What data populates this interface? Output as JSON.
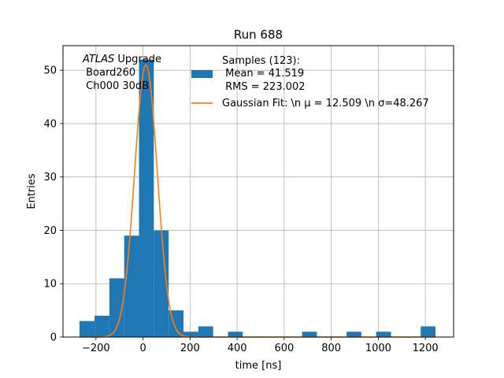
{
  "chart_data": {
    "type": "bar",
    "title": "Run 688",
    "xlabel": "time [ns]",
    "ylabel": "Entries",
    "xlim": [
      -340,
      1320
    ],
    "ylim": [
      0,
      54.6
    ],
    "xticks": [
      -200,
      0,
      200,
      400,
      600,
      800,
      1000,
      1200
    ],
    "xtick_labels": [
      "−200",
      "0",
      "200",
      "400",
      "600",
      "800",
      "1000",
      "1200"
    ],
    "yticks": [
      0,
      10,
      20,
      30,
      40,
      50
    ],
    "ytick_labels": [
      "0",
      "10",
      "20",
      "30",
      "40",
      "50"
    ],
    "grid": true,
    "annotation": {
      "lines": [
        {
          "italic": "ATLAS",
          "normal": " Upgrade"
        },
        {
          "italic": "",
          "normal": " Board260"
        },
        {
          "italic": "",
          "normal": " Ch000 30dB"
        }
      ]
    },
    "legend": {
      "placement": "top-right",
      "histogram_label_lines": [
        "Samples (123):",
        " Mean = 41.519",
        " RMS = 223.002"
      ],
      "fit_label": "Gaussian Fit: \\n μ = 12.509 \\n σ=48.267"
    },
    "series": [
      {
        "kind": "histogram",
        "color": "#1f77b4",
        "bins": [
          {
            "x0": -270,
            "x1": -206,
            "count": 3
          },
          {
            "x0": -206,
            "x1": -143,
            "count": 4
          },
          {
            "x0": -143,
            "x1": -80,
            "count": 11
          },
          {
            "x0": -80,
            "x1": -17,
            "count": 19
          },
          {
            "x0": -17,
            "x1": 46,
            "count": 52
          },
          {
            "x0": 46,
            "x1": 109,
            "count": 20
          },
          {
            "x0": 109,
            "x1": 172,
            "count": 5
          },
          {
            "x0": 172,
            "x1": 235,
            "count": 1
          },
          {
            "x0": 235,
            "x1": 298,
            "count": 2
          },
          {
            "x0": 298,
            "x1": 361,
            "count": 0
          },
          {
            "x0": 361,
            "x1": 424,
            "count": 1
          },
          {
            "x0": 424,
            "x1": 487,
            "count": 0
          },
          {
            "x0": 487,
            "x1": 550,
            "count": 0
          },
          {
            "x0": 550,
            "x1": 613,
            "count": 0
          },
          {
            "x0": 613,
            "x1": 676,
            "count": 0
          },
          {
            "x0": 676,
            "x1": 739,
            "count": 1
          },
          {
            "x0": 739,
            "x1": 802,
            "count": 0
          },
          {
            "x0": 802,
            "x1": 865,
            "count": 0
          },
          {
            "x0": 865,
            "x1": 928,
            "count": 1
          },
          {
            "x0": 928,
            "x1": 991,
            "count": 0
          },
          {
            "x0": 991,
            "x1": 1054,
            "count": 1
          },
          {
            "x0": 1054,
            "x1": 1117,
            "count": 0
          },
          {
            "x0": 1117,
            "x1": 1180,
            "count": 0
          },
          {
            "x0": 1180,
            "x1": 1243,
            "count": 2
          }
        ]
      },
      {
        "kind": "gaussian_fit",
        "color": "#ff7f0e",
        "mu": 12.509,
        "sigma": 48.267,
        "amplitude": 51,
        "x_range": [
          -270,
          1243
        ]
      }
    ]
  }
}
